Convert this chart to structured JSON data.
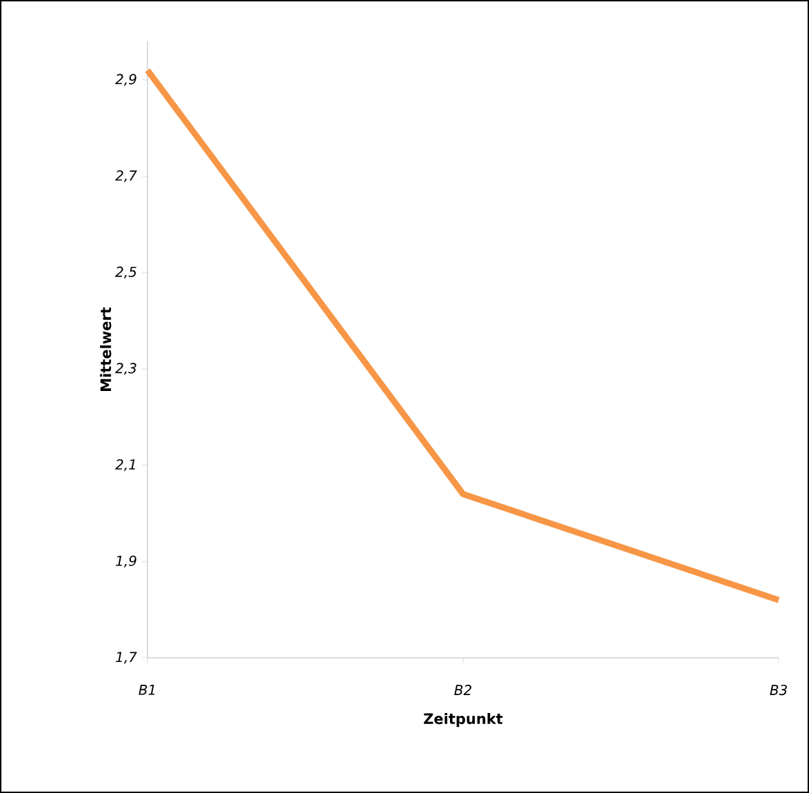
{
  "chart_data": {
    "type": "line",
    "xlabel": "Zeitpunkt",
    "ylabel": "Mittelwert",
    "categories": [
      "B1",
      "B2",
      "B3"
    ],
    "series": [
      {
        "color": "#f79646",
        "values": [
          2.92,
          2.04,
          1.82
        ]
      }
    ],
    "ylim": [
      1.7,
      2.98
    ],
    "yticks": [
      {
        "value": 1.7,
        "label": "1,7"
      },
      {
        "value": 1.9,
        "label": "1,9"
      },
      {
        "value": 2.1,
        "label": "2,1"
      },
      {
        "value": 2.3,
        "label": "2,3"
      },
      {
        "value": 2.5,
        "label": "2,5"
      },
      {
        "value": 2.7,
        "label": "2,7"
      },
      {
        "value": 2.9,
        "label": "2,9"
      }
    ],
    "grid": false,
    "marker": "none",
    "line_style": "solid"
  }
}
